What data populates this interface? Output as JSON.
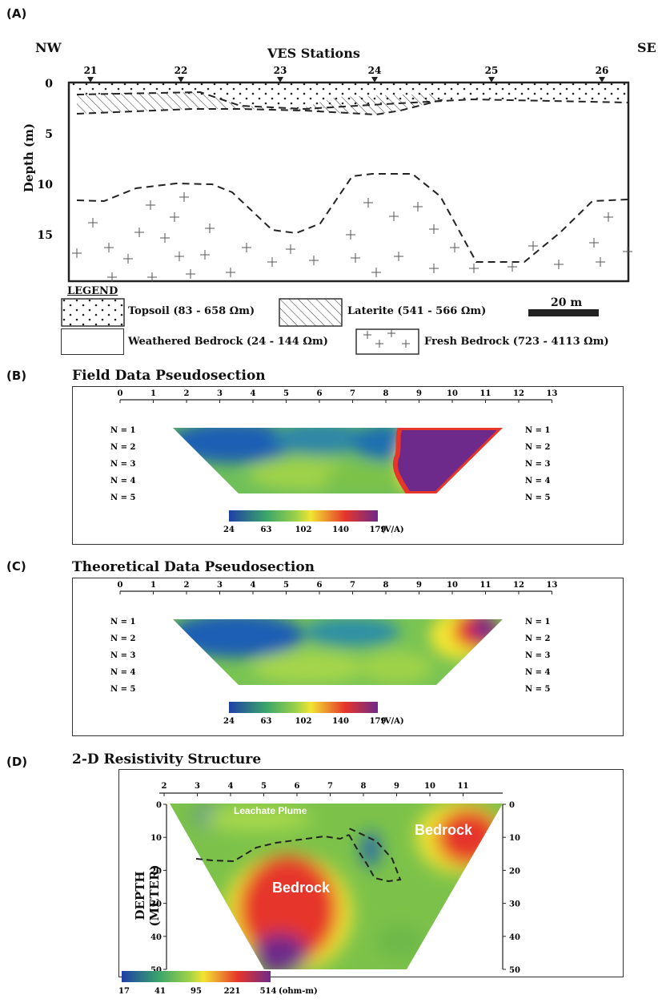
{
  "panel_a": {
    "tag": "(A)",
    "nw": "NW",
    "se": "SE",
    "title": "VES Stations",
    "ylabel": "Depth (m)",
    "stations": [
      "21",
      "22",
      "23",
      "24",
      "25",
      "26"
    ],
    "depth_ticks": [
      "0",
      "5",
      "10",
      "15"
    ],
    "legend_title": "LEGEND",
    "legend": {
      "topsoil": "Topsoil (83 - 658 Ωm)",
      "laterite": "Laterite (541 - 566 Ωm)",
      "weathered": "Weathered Bedrock (24 - 144 Ωm)",
      "fresh": "Fresh Bedrock (723 - 4113 Ωm)"
    },
    "scale_bar": "20 m"
  },
  "panel_b": {
    "tag": "(B)",
    "title": "Field Data Pseudosection",
    "x_ticks": [
      "0",
      "1",
      "2",
      "3",
      "4",
      "5",
      "6",
      "7",
      "8",
      "9",
      "10",
      "11",
      "12",
      "13"
    ],
    "levels": [
      "N = 1",
      "N = 2",
      "N = 3",
      "N = 4",
      "N = 5"
    ],
    "colorbar_ticks": [
      "24",
      "63",
      "102",
      "140",
      "179"
    ],
    "colorbar_unit": "(V/A)"
  },
  "panel_c": {
    "tag": "(C)",
    "title": "Theoretical Data Pseudosection",
    "x_ticks": [
      "0",
      "1",
      "2",
      "3",
      "4",
      "5",
      "6",
      "7",
      "8",
      "9",
      "10",
      "11",
      "12",
      "13"
    ],
    "levels": [
      "N = 1",
      "N = 2",
      "N = 3",
      "N = 4",
      "N = 5"
    ],
    "colorbar_ticks": [
      "24",
      "63",
      "102",
      "140",
      "179"
    ],
    "colorbar_unit": "(V/A)"
  },
  "panel_d": {
    "tag": "(D)",
    "title": "2-D Resistivity Structure",
    "x_ticks": [
      "2",
      "3",
      "4",
      "5",
      "6",
      "7",
      "8",
      "9",
      "10",
      "11"
    ],
    "depth_ticks": [
      "0",
      "10",
      "20",
      "30",
      "40",
      "50"
    ],
    "ylabel": "DEPTH (METER)",
    "annotations": {
      "plume": "Leachate Plume",
      "bedrock_left": "Bedrock",
      "bedrock_right": "Bedrock"
    },
    "colorbar_ticks": [
      "17",
      "41",
      "95",
      "221",
      "514"
    ],
    "colorbar_unit": "(ohm-m)"
  },
  "colors": {
    "blue": "#1f5fb4",
    "green": "#7cc24a",
    "yellow": "#f2e431",
    "red": "#e6352a",
    "purple": "#6e2a8a"
  }
}
